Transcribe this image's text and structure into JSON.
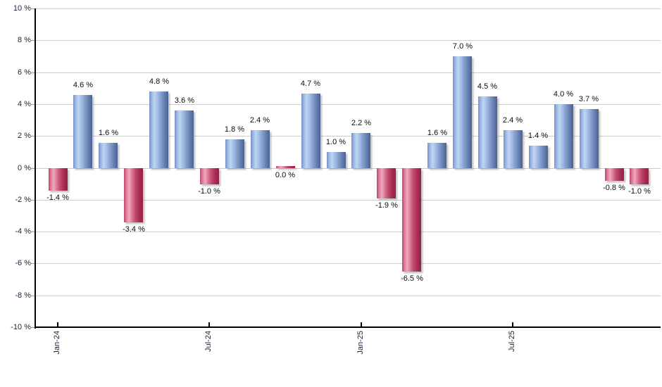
{
  "chart_data": {
    "type": "bar",
    "title": "",
    "xlabel": "",
    "ylabel": "",
    "unit": "%",
    "ylim": [
      -10,
      10
    ],
    "y_tick_step": 2,
    "grid": true,
    "legend_position": "none",
    "y_tick_labels": [
      "10 %",
      "8 %",
      "6 %",
      "4 %",
      "2 %",
      "0 %",
      "-2 %",
      "-4 %",
      "-6 %",
      "-8 %",
      "-10 %"
    ],
    "x_ticks": [
      {
        "index": 0,
        "label": "Jan-24"
      },
      {
        "index": 6,
        "label": "Jul-24"
      },
      {
        "index": 12,
        "label": "Jan-25"
      },
      {
        "index": 18,
        "label": "Jul-25"
      }
    ],
    "values": [
      -1.4,
      4.6,
      1.6,
      -3.4,
      4.8,
      3.6,
      -1.0,
      1.8,
      2.4,
      0.0,
      4.7,
      1.0,
      2.2,
      -1.9,
      -6.5,
      1.6,
      7.0,
      4.5,
      2.4,
      1.4,
      4.0,
      3.7,
      -0.8,
      -1.0
    ],
    "bar_labels": [
      "-1.4 %",
      "4.6 %",
      "1.6 %",
      "-3.4 %",
      "4.8 %",
      "3.6 %",
      "-1.0 %",
      "1.8 %",
      "2.4 %",
      "0.0 %",
      "4.7 %",
      "1.0 %",
      "2.2 %",
      "-1.9 %",
      "-6.5 %",
      "1.6 %",
      "7.0 %",
      "4.5 %",
      "2.4 %",
      "1.4 %",
      "4.0 %",
      "3.7 %",
      "-0.8 %",
      "-1.0 %"
    ],
    "zero_value_bar_style": "negative",
    "colors": {
      "positive_bar": "#7291c6",
      "positive_bar_highlight": "#c0d4f4",
      "positive_bar_dark": "#4b6392",
      "negative_bar": "#bf4368",
      "negative_bar_highlight": "#f0a8bd",
      "negative_bar_dark": "#962043",
      "gridline": "#cccccc",
      "axis": "#000000",
      "label_text": "#1f1f3d",
      "background": "#ffffff"
    }
  }
}
